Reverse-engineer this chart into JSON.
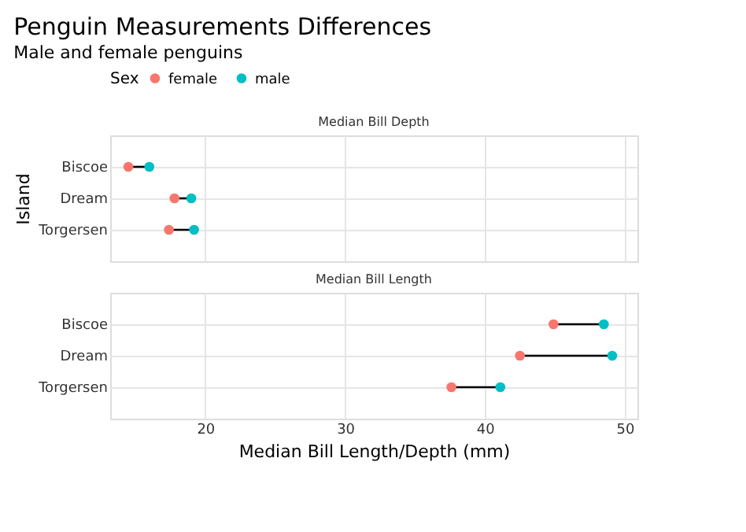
{
  "chart_data": [
    {
      "type": "scatter",
      "orientation": "horizontal",
      "title": "Penguin Measurements Differences",
      "subtitle": "Male and female penguins",
      "ylabel": "Island",
      "legend_title": "Sex",
      "legend": "top",
      "annotations": [
        "Median Bill Depth"
      ],
      "categories": [
        "Biscoe",
        "Dream",
        "Torgersen"
      ],
      "series": [
        {
          "name": "female",
          "color": "#f8766d",
          "values": [
            14.5,
            17.8,
            17.4
          ]
        },
        {
          "name": "male",
          "color": "#00bfc4",
          "values": [
            16.0,
            19.0,
            19.2
          ]
        }
      ],
      "xlim": [
        13.2,
        50.9
      ],
      "xticks": [
        20,
        30,
        40,
        50
      ],
      "grid": true,
      "marker": "circle",
      "tick_labels": "y"
    },
    {
      "type": "scatter",
      "orientation": "horizontal",
      "xlabel": "Median Bill Length/Depth (mm)",
      "annotations": [
        "Median Bill Length"
      ],
      "categories": [
        "Biscoe",
        "Dream",
        "Torgersen"
      ],
      "series": [
        {
          "color": "#f8766d",
          "values": [
            44.9,
            42.5,
            37.6
          ]
        },
        {
          "color": "#00bfc4",
          "values": [
            48.5,
            49.1,
            41.1
          ]
        }
      ],
      "xlim": [
        13.2,
        50.9
      ],
      "xticks": [
        20,
        30,
        40,
        50
      ],
      "grid": true,
      "marker": "circle"
    }
  ]
}
